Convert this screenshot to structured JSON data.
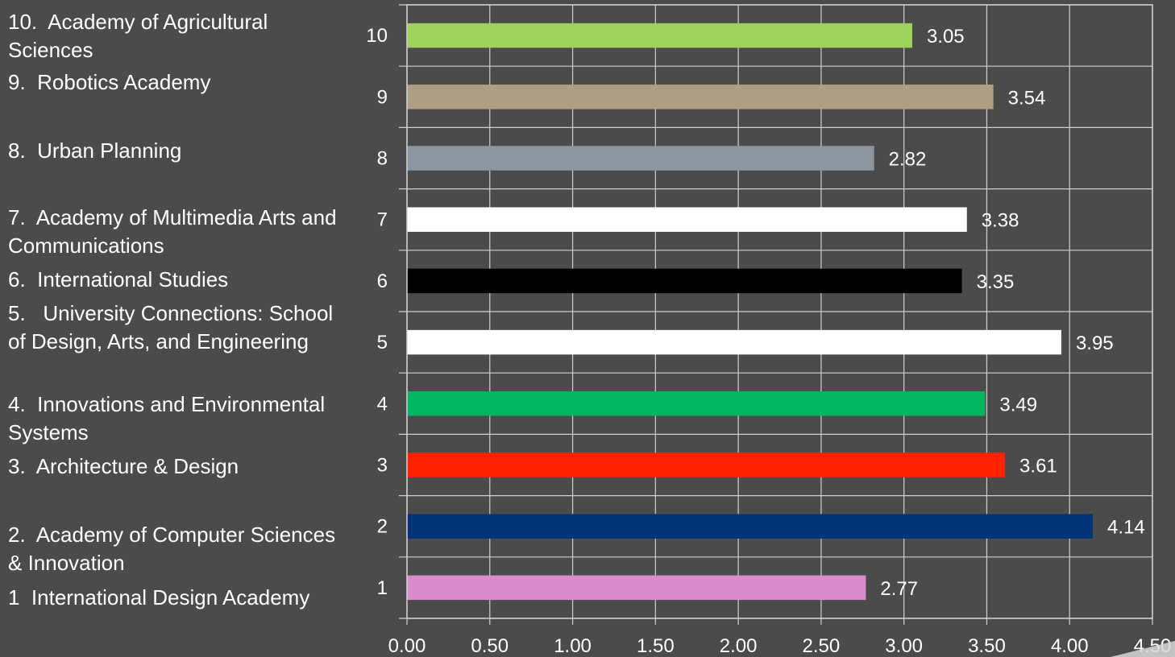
{
  "legend": {
    "items": [
      "10.  Academy of Agricultural Sciences",
      "9.  Robotics Academy",
      "8.  Urban Planning",
      "7.  Academy of Multimedia Arts and Communications",
      "6.  International Studies",
      "5.   University Connections: School of Design, Arts, and Engineering",
      "4.  Innovations and Environmental Systems",
      "3.  Architecture & Design",
      "2.  Academy of Computer Sciences & Innovation",
      "1  International Design Academy"
    ]
  },
  "chart_data": {
    "type": "bar",
    "orientation": "horizontal",
    "categories": [
      "1",
      "2",
      "3",
      "4",
      "5",
      "6",
      "7",
      "8",
      "9",
      "10"
    ],
    "values": [
      2.77,
      4.14,
      3.61,
      3.49,
      3.95,
      3.35,
      3.38,
      2.82,
      3.54,
      3.05
    ],
    "value_labels": [
      "2.77",
      "4.14",
      "3.61",
      "3.49",
      "3.95",
      "3.35",
      "3.38",
      "2.82",
      "3.54",
      "3.05"
    ],
    "colors": [
      "#d98ccc",
      "#003378",
      "#ff2200",
      "#00b561",
      "#ffffff",
      "#000000",
      "#ffffff",
      "#8c96a0",
      "#aba081",
      "#9fd25c"
    ],
    "xlim": [
      0,
      4.5
    ],
    "xticks": [
      "0.00",
      "0.50",
      "1.00",
      "1.50",
      "2.00",
      "2.50",
      "3.00",
      "3.50",
      "4.00",
      "4.50"
    ],
    "grid": true,
    "title": "",
    "xlabel": "",
    "ylabel": ""
  }
}
